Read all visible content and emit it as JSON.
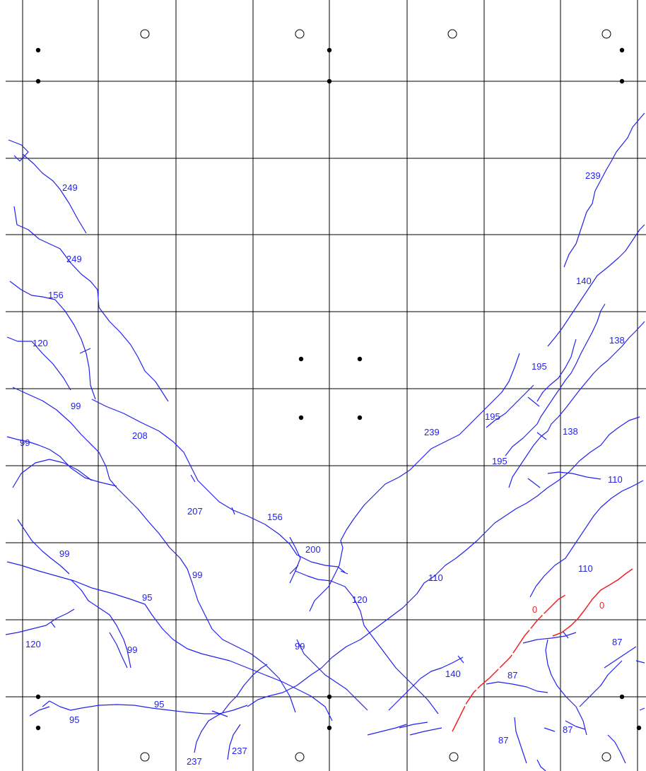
{
  "map": {
    "colors": {
      "background": "#ffffff",
      "grid": "#000000",
      "contour": "#2222ee",
      "highlight": "#ee2222",
      "marker": "#000000"
    },
    "grid": {
      "columns": 8,
      "rows": 10
    },
    "labels": {
      "l1": "249",
      "l2": "249",
      "l3": "156",
      "l4": "120",
      "l5": "99",
      "l6": "208",
      "l7": "99",
      "l8": "207",
      "l9": "156",
      "l10": "200",
      "l11": "99",
      "l12": "99",
      "l13": "95",
      "l14": "120",
      "l15": "99",
      "l16": "99",
      "l17": "95",
      "l18": "95",
      "l19": "237",
      "l20": "237",
      "l21": "120",
      "l22": "110",
      "l23": "239",
      "l24": "239",
      "l25": "140",
      "l26": "138",
      "l27": "195",
      "l28": "195",
      "l29": "138",
      "l30": "195",
      "l31": "110",
      "l32": "110",
      "l33": "0",
      "l34": "0",
      "l35": "87",
      "l36": "140",
      "l37": "87",
      "l38": "87",
      "l39": "87"
    }
  }
}
